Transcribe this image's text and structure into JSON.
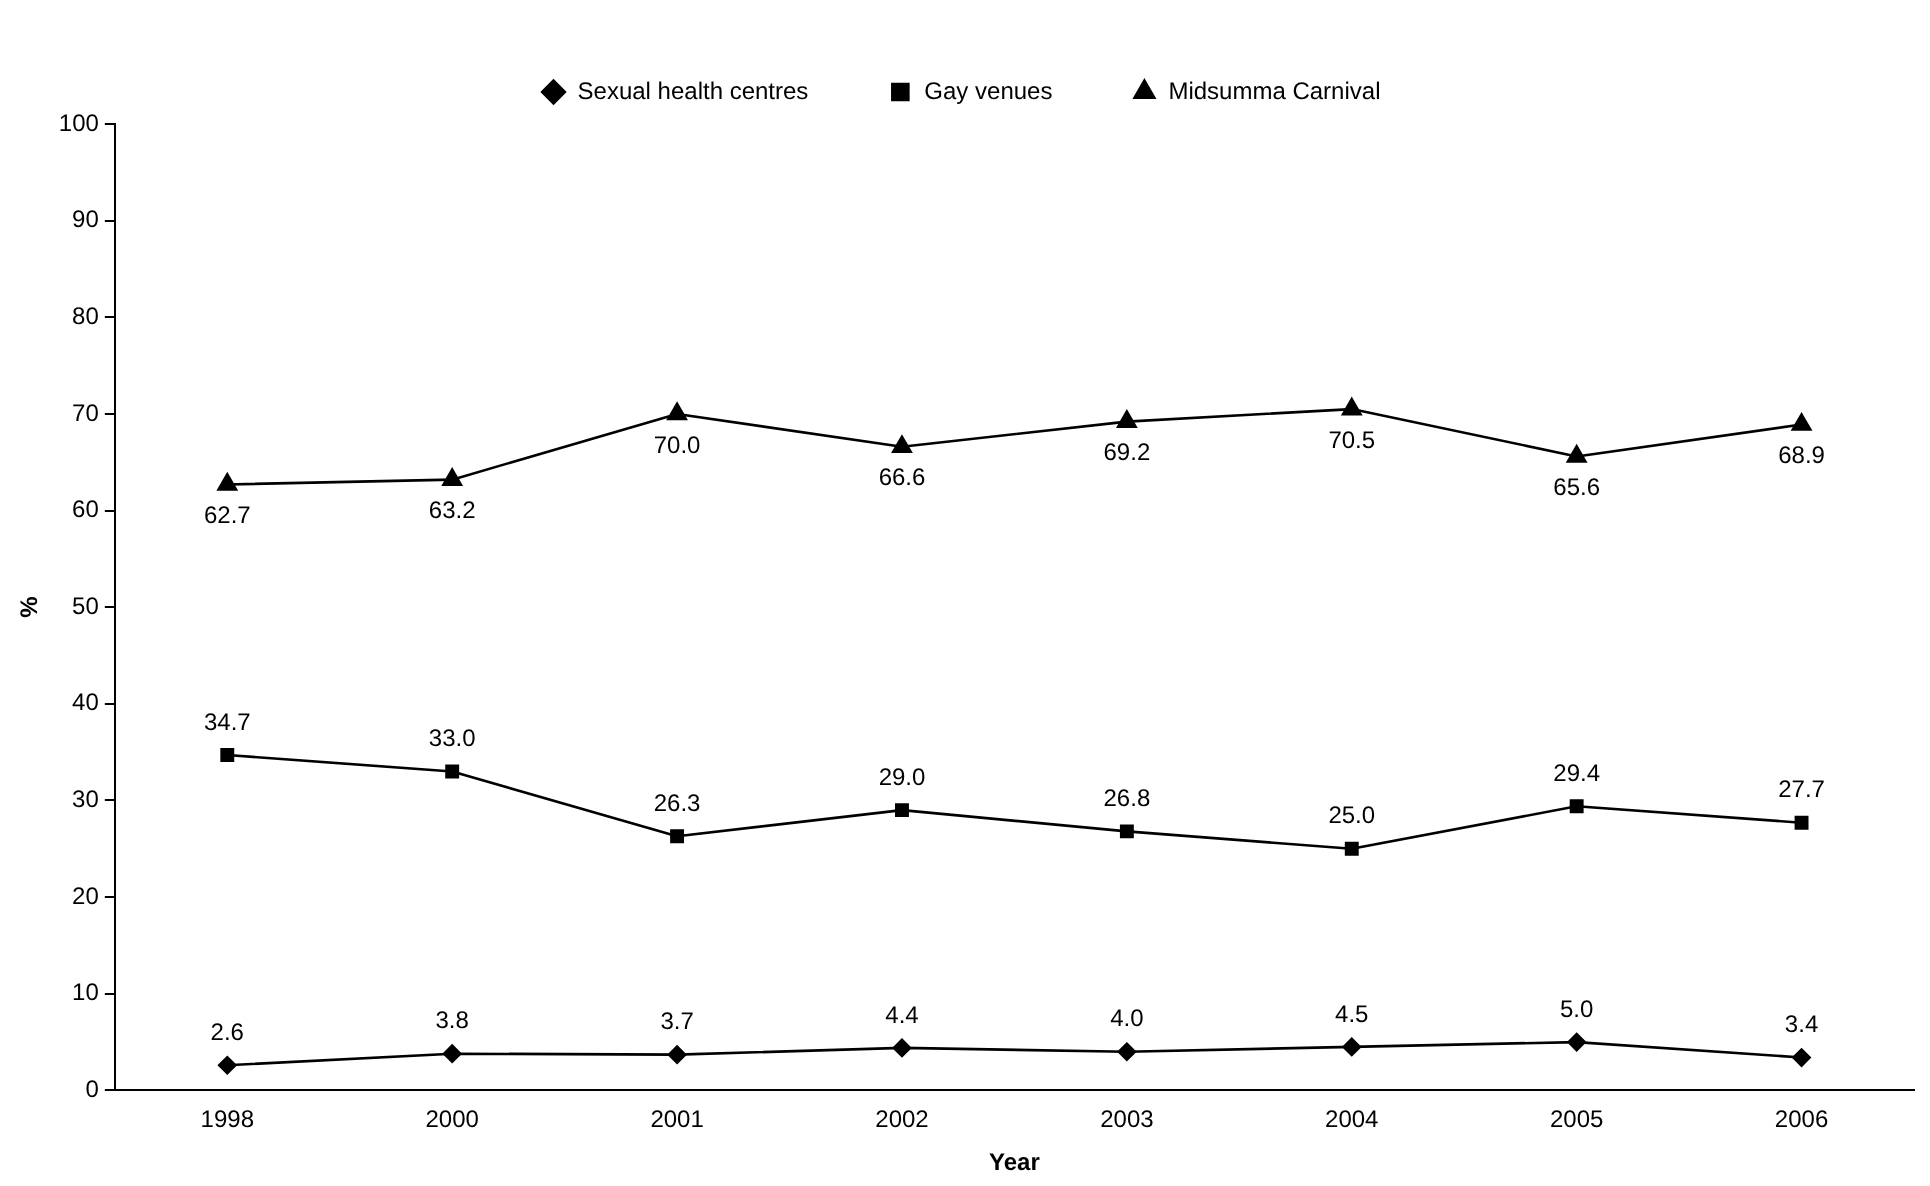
{
  "chart_data": {
    "type": "line",
    "xlabel": "Year",
    "ylabel": "%",
    "categories": [
      "1998",
      "2000",
      "2001",
      "2002",
      "2003",
      "2004",
      "2005",
      "2006"
    ],
    "series": [
      {
        "name": "Sexual health centres",
        "color": "#000000",
        "marker": "diamond",
        "values": [
          2.6,
          3.8,
          3.7,
          4.4,
          4.0,
          4.5,
          5.0,
          3.4
        ],
        "value_labels": [
          "2.6",
          "3.8",
          "3.7",
          "4.4",
          "4.0",
          "4.5",
          "5.0",
          "3.4"
        ]
      },
      {
        "name": "Gay venues",
        "color": "#000000",
        "marker": "square",
        "values": [
          34.7,
          33.0,
          26.3,
          29.0,
          26.8,
          25.0,
          29.4,
          27.7
        ],
        "value_labels": [
          "34.7",
          "33.0",
          "26.3",
          "29.0",
          "26.8",
          "25.0",
          "29.4",
          "27.7"
        ]
      },
      {
        "name": "Midsumma Carnival",
        "color": "#000000",
        "marker": "triangle",
        "values": [
          62.7,
          63.2,
          70.0,
          66.6,
          69.2,
          70.5,
          65.6,
          68.9
        ],
        "value_labels": [
          "62.7",
          "63.2",
          "70.0",
          "66.6",
          "69.2",
          "70.5",
          "65.6",
          "68.9"
        ]
      }
    ],
    "ylim": [
      0,
      100
    ],
    "yticks": [
      0,
      10,
      20,
      30,
      40,
      50,
      60,
      70,
      80,
      90,
      100
    ],
    "grid": false,
    "legend": "top",
    "line_style": "solid"
  }
}
